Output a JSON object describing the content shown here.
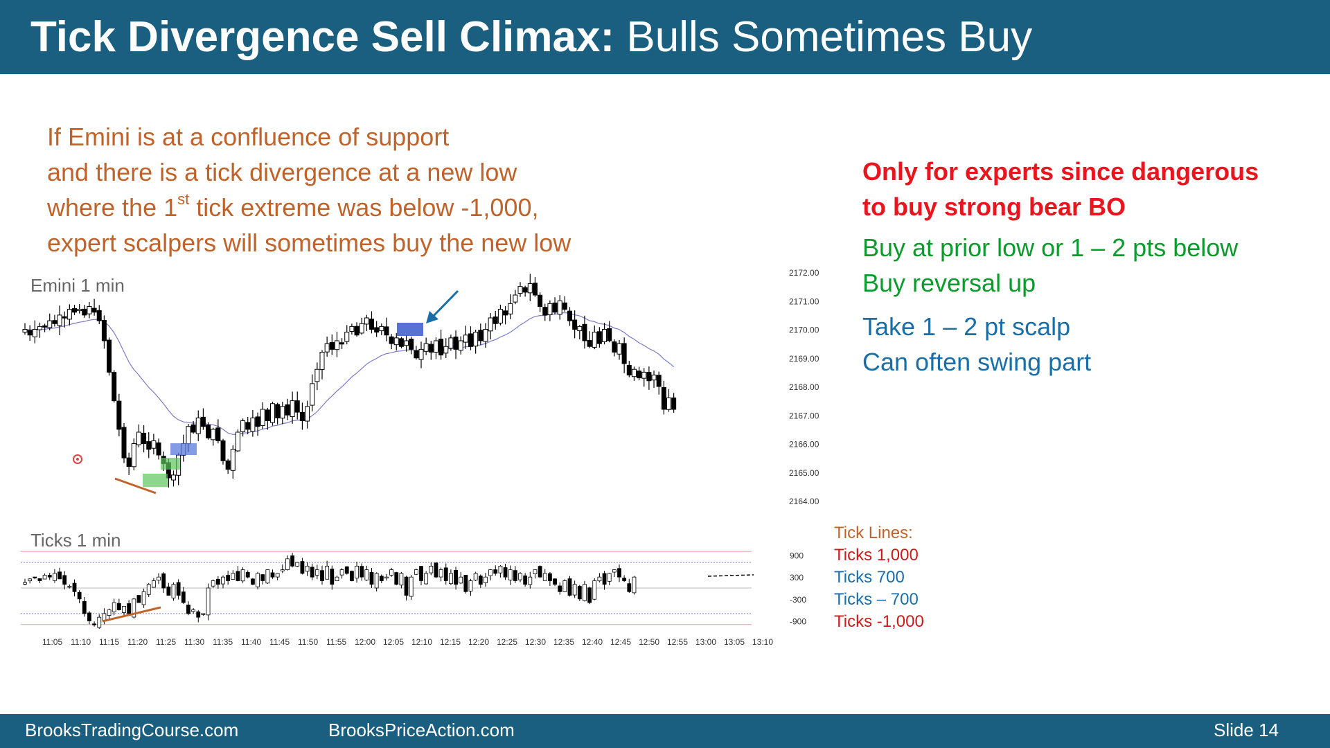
{
  "slide": {
    "title_bold": "Tick Divergence Sell Climax:",
    "title_light": " Bulls Sometimes Buy",
    "intro": [
      "If Emini is at a confluence of support",
      "and there is a tick divergence at a new low",
      "where the 1",
      "st",
      " tick extreme was below -1,000,",
      "expert scalpers will sometimes buy the new low"
    ],
    "warning": [
      "Only for experts since dangerous",
      "to buy strong bear BO"
    ],
    "buy_notes": [
      "Buy at prior low or 1 – 2 pts below",
      "Buy reversal up"
    ],
    "take_notes": [
      "Take 1 – 2 pt scalp",
      "Can often swing part"
    ],
    "tick_legend": {
      "title": "Tick Lines:",
      "items": [
        "Ticks 1,000",
        "Ticks 700",
        "Ticks – 700",
        "Ticks -1,000"
      ]
    },
    "footer": {
      "left": "BrooksTradingCourse.com",
      "middle": "BrooksPriceAction.com",
      "right": "Slide  14"
    },
    "colors": {
      "header_bg": "#1a5f7f",
      "intro_text": "#c0632b",
      "warning_text": "#e8141e",
      "buy_text": "#0b9a2b",
      "take_text": "#1a6ea8"
    }
  },
  "chart_data": [
    {
      "type": "candlestick",
      "title": "Emini 1 min",
      "y_ticks": [
        "2172.00",
        "2171.00",
        "2170.00",
        "2169.00",
        "2168.00",
        "2167.00",
        "2166.00",
        "2165.00",
        "2164.00"
      ],
      "ylim": [
        2164,
        2172
      ],
      "close": [
        2170.0,
        2169.8,
        2170.0,
        2170.1,
        2170.1,
        2170.3,
        2170.2,
        2170.5,
        2170.4,
        2170.7,
        2170.6,
        2170.7,
        2170.5,
        2170.8,
        2170.6,
        2170.3,
        2169.6,
        2168.5,
        2167.5,
        2166.5,
        2165.5,
        2165.2,
        2166.0,
        2166.4,
        2166.0,
        2165.8,
        2166.1,
        2165.6,
        2165.3,
        2164.8,
        2164.9,
        2165.6,
        2166.0,
        2166.6,
        2166.4,
        2166.9,
        2166.6,
        2166.2,
        2166.5,
        2166.1,
        2165.4,
        2165.1,
        2165.8,
        2166.4,
        2166.8,
        2166.5,
        2166.9,
        2166.6,
        2167.2,
        2166.8,
        2167.4,
        2166.9,
        2167.3,
        2167.0,
        2167.5,
        2167.1,
        2166.8,
        2167.3,
        2168.1,
        2168.6,
        2169.2,
        2169.5,
        2169.3,
        2169.6,
        2169.5,
        2169.9,
        2170.1,
        2169.8,
        2170.2,
        2170.4,
        2170.0,
        2169.9,
        2170.1,
        2169.8,
        2169.5,
        2169.7,
        2169.4,
        2169.6,
        2169.3,
        2169.0,
        2169.3,
        2169.5,
        2169.2,
        2169.6,
        2169.1,
        2169.4,
        2169.7,
        2169.3,
        2169.6,
        2169.8,
        2169.4,
        2169.9,
        2169.6,
        2170.0,
        2170.4,
        2170.2,
        2170.7,
        2170.5,
        2170.9,
        2171.2,
        2171.5,
        2171.3,
        2171.6,
        2171.2,
        2170.8,
        2170.5,
        2170.9,
        2170.6,
        2171.0,
        2170.7,
        2170.3,
        2170.0,
        2170.1,
        2169.6,
        2169.4,
        2169.9,
        2169.5,
        2170.0,
        2169.6,
        2169.2,
        2169.5,
        2168.8,
        2168.4,
        2168.6,
        2168.3,
        2168.5,
        2168.2,
        2168.4,
        2168.0,
        2167.2,
        2167.6,
        2167.2
      ]
    },
    {
      "type": "candlestick",
      "title": "Ticks 1 min",
      "y_ticks": [
        "900",
        "300",
        "-300",
        "-900"
      ],
      "x_ticks": [
        "11:05",
        "11:10",
        "11:15",
        "11:20",
        "11:25",
        "11:30",
        "11:35",
        "11:40",
        "11:45",
        "11:50",
        "11:55",
        "12:00",
        "12:05",
        "12:10",
        "12:15",
        "12:20",
        "12:25",
        "12:30",
        "12:35",
        "12:40",
        "12:45",
        "12:50",
        "12:55",
        "13:00",
        "13:05",
        "13:10"
      ],
      "reference_lines": [
        1000,
        700,
        -700,
        -1000
      ],
      "ylim": [
        -1100,
        1100
      ],
      "close": [
        150,
        250,
        300,
        200,
        350,
        300,
        400,
        250,
        100,
        50,
        -100,
        -300,
        -700,
        -900,
        -1000,
        -800,
        -700,
        -600,
        -400,
        -600,
        -500,
        -700,
        -300,
        -400,
        -100,
        100,
        200,
        300,
        0,
        -200,
        100,
        -200,
        -400,
        -700,
        -600,
        -800,
        -700,
        0,
        200,
        100,
        300,
        200,
        400,
        200,
        500,
        300,
        100,
        400,
        200,
        500,
        300,
        400,
        500,
        800,
        600,
        700,
        400,
        600,
        300,
        500,
        200,
        600,
        100,
        300,
        500,
        400,
        200,
        600,
        300,
        500,
        100,
        400,
        200,
        300,
        500,
        100,
        400,
        -200,
        300,
        500,
        200,
        400,
        600,
        300,
        500,
        200,
        400,
        100,
        300,
        -100,
        200,
        400,
        100,
        300,
        500,
        400,
        600,
        300,
        500,
        200,
        400,
        100,
        300,
        500,
        300,
        400,
        200,
        100,
        -100,
        200,
        -200,
        100,
        -300,
        100,
        -400,
        200,
        300,
        100,
        400,
        500,
        300,
        200,
        -100,
        300
      ]
    }
  ]
}
